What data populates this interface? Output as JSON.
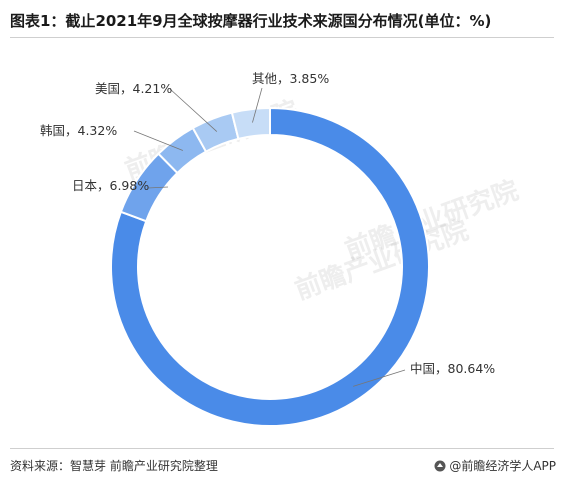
{
  "header": {
    "title": "图表1：截止2021年9月全球按摩器行业技术来源国分布情况(单位：%)"
  },
  "chart_data": {
    "type": "pie",
    "variant": "donut",
    "slices": [
      {
        "label": "中国",
        "value": 80.64,
        "text": "中国，80.64%",
        "color": "#4a8be8"
      },
      {
        "label": "日本",
        "value": 6.98,
        "text": "日本，6.98%",
        "color": "#6fa3ec"
      },
      {
        "label": "韩国",
        "value": 4.32,
        "text": "韩国，4.32%",
        "color": "#8db8f0"
      },
      {
        "label": "美国",
        "value": 4.21,
        "text": "美国，4.21%",
        "color": "#a9caf3"
      },
      {
        "label": "其他",
        "value": 3.85,
        "text": "其他，3.85%",
        "color": "#c7ddf7"
      }
    ]
  },
  "footer": {
    "source": "资料来源：智慧芽 前瞻产业研究院整理",
    "brand": "@前瞻经济学人APP"
  },
  "watermarks": [
    "前瞻产业研究院",
    "前瞻产业研究院",
    "前瞻产业研究院"
  ]
}
